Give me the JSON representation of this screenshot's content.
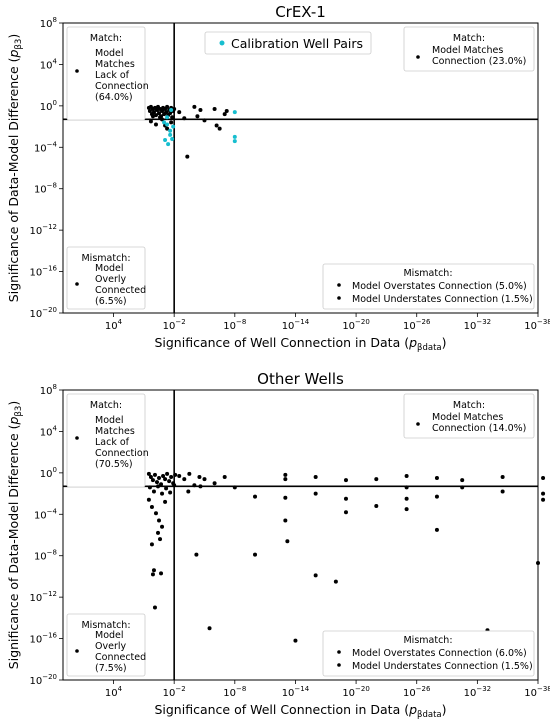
{
  "figure": {
    "y_axis_label_base": "Significance of Data-Model Difference (",
    "y_axis_label_sym": "p",
    "y_axis_label_sub": "β3",
    "y_axis_label_end": ")",
    "x_axis_label_base": "Significance of Well Connection in Data (",
    "x_axis_label_sym": "p",
    "x_axis_label_sub": "βdata",
    "x_axis_label_end": ")"
  },
  "chart_data": [
    {
      "type": "scatter",
      "title": "CrEX-1",
      "x_scale": "log-reversed",
      "y_scale": "log",
      "xlim_exp": [
        9,
        -38
      ],
      "ylim_exp": [
        -20,
        8
      ],
      "x_ticks": [
        "10^4",
        "10^-2",
        "10^-8",
        "10^-14",
        "10^-20",
        "10^-26",
        "10^-32",
        "10^-38"
      ],
      "y_ticks": [
        "10^8",
        "10^4",
        "10^0",
        "10^-4",
        "10^-8",
        "10^-12",
        "10^-16",
        "10^-20"
      ],
      "threshold_x": 0.01,
      "threshold_y": 0.05,
      "grid": false,
      "colors": {
        "black": "#000000",
        "calibration": "#17becf"
      },
      "legend": {
        "label": "Calibration Well Pairs",
        "placement": "top-center"
      },
      "annotations": {
        "top_left": {
          "header": "Match:",
          "lines": [
            "Model",
            "Matches",
            "Lack of",
            "Connection",
            "(64.0%)"
          ]
        },
        "top_right": {
          "header": "Match:",
          "lines": [
            "Model Matches",
            "Connection (23.0%)"
          ]
        },
        "bottom_left": {
          "header": "Mismatch:",
          "lines": [
            "Model",
            "Overly",
            "Connected",
            "(6.5%)"
          ]
        },
        "bottom_right": {
          "header": "Mismatch:",
          "lines": [
            "Model Overstates Connection (5.0%)",
            "Model Understates Connection (1.5%)"
          ]
        }
      },
      "series": [
        {
          "color": "black",
          "points": [
            [
              0.5,
              -0.2
            ],
            [
              0.4,
              -0.5
            ],
            [
              0.3,
              -0.1
            ],
            [
              0.2,
              -0.8
            ],
            [
              0.1,
              -0.3
            ],
            [
              0,
              -0.6
            ],
            [
              -0.1,
              -0.2
            ],
            [
              -0.2,
              -0.9
            ],
            [
              -0.3,
              -0.4
            ],
            [
              -0.4,
              -0.1
            ],
            [
              -0.5,
              -0.7
            ],
            [
              -0.6,
              -0.3
            ],
            [
              -0.7,
              -1.0
            ],
            [
              -0.8,
              -0.5
            ],
            [
              -0.9,
              -0.2
            ],
            [
              -1.0,
              -0.8
            ],
            [
              -1.1,
              -0.3
            ],
            [
              -1.2,
              -0.6
            ],
            [
              -1.3,
              -0.1
            ],
            [
              -1.4,
              -0.9
            ],
            [
              -1.5,
              -0.4
            ],
            [
              -1.6,
              -0.7
            ],
            [
              -1.7,
              -0.2
            ],
            [
              -1.8,
              -1.1
            ],
            [
              -1.9,
              -0.5
            ],
            [
              -2.0,
              -0.3
            ],
            [
              0.3,
              -1.5
            ],
            [
              -0.2,
              -1.8
            ],
            [
              -0.8,
              -1.3
            ],
            [
              -1.3,
              -2.2
            ],
            [
              -1.7,
              -1.6
            ],
            [
              0.1,
              -1.0
            ],
            [
              -0.6,
              -1.1
            ],
            [
              -1.1,
              -1.9
            ],
            [
              -4.0,
              -0.1
            ],
            [
              -4.3,
              -1.0
            ],
            [
              -4.6,
              -0.4
            ],
            [
              -5.0,
              -1.4
            ],
            [
              -6.0,
              -0.3
            ],
            [
              -6.2,
              -1.9
            ],
            [
              -6.5,
              -2.2
            ],
            [
              -7.0,
              -0.8
            ],
            [
              -3.0,
              -1.2
            ],
            [
              -2.5,
              -0.6
            ],
            [
              -3.3,
              -4.9
            ],
            [
              -7.2,
              -0.5
            ]
          ]
        },
        {
          "name": "Calibration Well Pairs",
          "color": "calibration",
          "points": [
            [
              -1.0,
              -1.6
            ],
            [
              -1.3,
              -1.8
            ],
            [
              -1.6,
              -2.4
            ],
            [
              -1.9,
              -2.0
            ],
            [
              -1.6,
              -2.8
            ],
            [
              -1.1,
              -3.3
            ],
            [
              -1.4,
              -3.7
            ],
            [
              -1.8,
              -3.2
            ],
            [
              -1.3,
              -1.1
            ],
            [
              -1.7,
              -0.4
            ],
            [
              -8.0,
              -0.6
            ],
            [
              -8.0,
              -3.0
            ],
            [
              -8.0,
              -3.4
            ]
          ]
        }
      ]
    },
    {
      "type": "scatter",
      "title": "Other Wells",
      "x_scale": "log-reversed",
      "y_scale": "log",
      "xlim_exp": [
        9,
        -38
      ],
      "ylim_exp": [
        -20,
        8
      ],
      "x_ticks": [
        "10^4",
        "10^-2",
        "10^-8",
        "10^-14",
        "10^-20",
        "10^-26",
        "10^-32",
        "10^-38"
      ],
      "y_ticks": [
        "10^8",
        "10^4",
        "10^0",
        "10^-4",
        "10^-8",
        "10^-12",
        "10^-16",
        "10^-20"
      ],
      "threshold_x": 0.01,
      "threshold_y": 0.05,
      "grid": false,
      "colors": {
        "black": "#000000"
      },
      "annotations": {
        "top_left": {
          "header": "Match:",
          "lines": [
            "Model",
            "Matches",
            "Lack of",
            "Connection",
            "(70.5%)"
          ]
        },
        "top_right": {
          "header": "Match:",
          "lines": [
            "Model Matches",
            "Connection (14.0%)"
          ]
        },
        "bottom_left": {
          "header": "Mismatch:",
          "lines": [
            "Model",
            "Overly",
            "Connected",
            "(7.5%)"
          ]
        },
        "bottom_right": {
          "header": "Mismatch:",
          "lines": [
            "Model Overstates Connection (6.0%)",
            "Model Understates Connection (1.5%)"
          ]
        }
      },
      "series": [
        {
          "color": "black",
          "points": [
            [
              0.5,
              -0.1
            ],
            [
              0.3,
              -0.4
            ],
            [
              0.1,
              -0.7
            ],
            [
              -0.1,
              -0.2
            ],
            [
              -0.3,
              -0.9
            ],
            [
              -0.5,
              -0.5
            ],
            [
              -0.7,
              -1.1
            ],
            [
              -0.9,
              -0.3
            ],
            [
              -1.1,
              -0.6
            ],
            [
              -1.3,
              -0.1
            ],
            [
              -1.5,
              -0.8
            ],
            [
              -1.7,
              -0.4
            ],
            [
              -1.9,
              -1.0
            ],
            [
              -2.1,
              -0.2
            ],
            [
              0.4,
              -1.4
            ],
            [
              0,
              -1.8
            ],
            [
              -0.4,
              -1.3
            ],
            [
              -0.8,
              -2.0
            ],
            [
              -1.2,
              -1.5
            ],
            [
              -1.6,
              -1.9
            ],
            [
              -2.0,
              -1.2
            ],
            [
              0.5,
              -2.6
            ],
            [
              0.2,
              -3.3
            ],
            [
              -0.2,
              -3.9
            ],
            [
              -0.5,
              -4.6
            ],
            [
              -0.8,
              -5.2
            ],
            [
              -1.1,
              -2.8
            ],
            [
              -0.4,
              -5.8
            ],
            [
              -0.6,
              -6.4
            ],
            [
              0.2,
              -6.9
            ],
            [
              0,
              -9.4
            ],
            [
              0.1,
              -9.8
            ],
            [
              -0.7,
              -9.7
            ],
            [
              -0.1,
              -13.0
            ],
            [
              -2.5,
              -0.3
            ],
            [
              -3.0,
              -0.6
            ],
            [
              -3.5,
              -0.1
            ],
            [
              -4.0,
              -1.2
            ],
            [
              -4.5,
              -0.4
            ],
            [
              -3.4,
              -1.8
            ],
            [
              -4.6,
              -1.3
            ],
            [
              -5.0,
              -0.6
            ],
            [
              -6.0,
              -1.0
            ],
            [
              -7.0,
              -0.4
            ],
            [
              -8.0,
              -1.4
            ],
            [
              -10.0,
              -2.3
            ],
            [
              -10.0,
              -7.9
            ],
            [
              -13.0,
              -0.2
            ],
            [
              -13.0,
              -0.6
            ],
            [
              -13.0,
              -2.4
            ],
            [
              -13.0,
              -4.6
            ],
            [
              -13.2,
              -6.6
            ],
            [
              -16.0,
              -0.4
            ],
            [
              -16.0,
              -2.0
            ],
            [
              -19.0,
              -0.7
            ],
            [
              -19.0,
              -2.5
            ],
            [
              -19.0,
              -3.8
            ],
            [
              -22.0,
              -0.6
            ],
            [
              -22.0,
              -3.2
            ],
            [
              -25.0,
              -0.3
            ],
            [
              -25.0,
              -1.4
            ],
            [
              -25.0,
              -2.5
            ],
            [
              -25.0,
              -3.5
            ],
            [
              -28.0,
              -0.5
            ],
            [
              -28.0,
              -2.3
            ],
            [
              -28.0,
              -5.5
            ],
            [
              -30.5,
              -0.7
            ],
            [
              -30.5,
              -1.4
            ],
            [
              -34.5,
              -0.4
            ],
            [
              -34.5,
              -1.8
            ],
            [
              -38.5,
              -0.5
            ],
            [
              -38.5,
              -2.0
            ],
            [
              -38.5,
              -2.6
            ],
            [
              -4.2,
              -7.9
            ],
            [
              -5.5,
              -15.0
            ],
            [
              -14.0,
              -16.2
            ],
            [
              -16.0,
              -9.9
            ],
            [
              -18.0,
              -10.5
            ],
            [
              -33.0,
              -15.2
            ],
            [
              -38.0,
              -8.7
            ]
          ]
        }
      ]
    }
  ]
}
